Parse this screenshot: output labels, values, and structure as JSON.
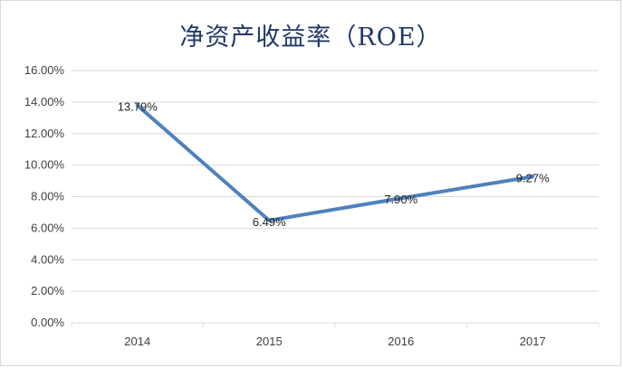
{
  "chart_data": {
    "type": "line",
    "title": "净资产收益率（ROE）",
    "categories": [
      "2014",
      "2015",
      "2016",
      "2017"
    ],
    "series": [
      {
        "values": [
          13.79,
          6.49,
          7.9,
          9.27
        ],
        "data_labels": [
          "13.79%",
          "6.49%",
          "7.90%",
          "9.27%"
        ],
        "color": "#4f81bd"
      }
    ],
    "y_ticks": [
      "0.00%",
      "2.00%",
      "4.00%",
      "6.00%",
      "8.00%",
      "10.00%",
      "12.00%",
      "14.00%",
      "16.00%"
    ],
    "ylim": [
      0,
      16
    ],
    "xlabel": "",
    "ylabel": "",
    "grid": true,
    "legend": "none"
  },
  "colors": {
    "gridline": "#d9d9d9",
    "title": "#1f3864",
    "line": "#4f81bd"
  }
}
